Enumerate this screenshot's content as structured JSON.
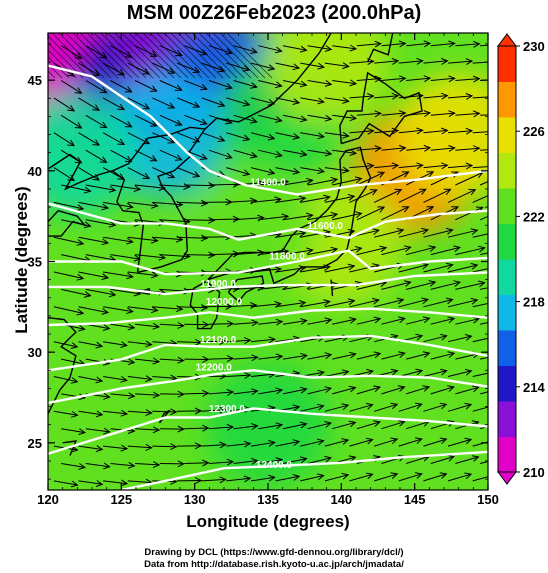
{
  "title": "MSM 00Z26Feb2023 (200.0hPa)",
  "credits": [
    "Drawing by DCL (https://www.gfd-dennou.org/library/dcl/)",
    "Data from http://database.rish.kyoto-u.ac.jp/arch/jmadata/"
  ],
  "chart_data": {
    "type": "heatmap",
    "title": "MSM 00Z26Feb2023 (200.0hPa)",
    "xlabel": "Longitude (degrees)",
    "ylabel": "Latitude  (degrees)",
    "xlim": [
      120,
      150
    ],
    "ylim": [
      22.4,
      47.6
    ],
    "x_ticks": [
      120,
      125,
      130,
      135,
      140,
      145,
      150
    ],
    "y_ticks": [
      25,
      30,
      35,
      40,
      45
    ],
    "colorbar": {
      "ticks": [
        210,
        214,
        218,
        222,
        226,
        230
      ],
      "range": [
        210,
        230
      ],
      "palette": [
        "#e000c8",
        "#8a10d8",
        "#2018c8",
        "#1060e8",
        "#10b8e8",
        "#10d8a0",
        "#20d840",
        "#60e020",
        "#b0e810",
        "#e8e000",
        "#ff9800",
        "#ff3000"
      ]
    },
    "field": [
      {
        "lon": 120,
        "lat": 47.6,
        "value": 210.5
      },
      {
        "lon": 122,
        "lat": 46,
        "value": 211.5
      },
      {
        "lon": 126,
        "lat": 45,
        "value": 213.5
      },
      {
        "lon": 129,
        "lat": 47,
        "value": 212.5
      },
      {
        "lon": 132,
        "lat": 45,
        "value": 216
      },
      {
        "lon": 128,
        "lat": 42,
        "value": 218
      },
      {
        "lon": 122,
        "lat": 41,
        "value": 219
      },
      {
        "lon": 136,
        "lat": 43,
        "value": 221
      },
      {
        "lon": 139,
        "lat": 46,
        "value": 223.5
      },
      {
        "lon": 145,
        "lat": 40,
        "value": 227.5
      },
      {
        "lon": 148,
        "lat": 42,
        "value": 226.5
      },
      {
        "lon": 140,
        "lat": 36,
        "value": 224.5
      },
      {
        "lon": 134,
        "lat": 37,
        "value": 223
      },
      {
        "lon": 126,
        "lat": 32,
        "value": 222.5
      },
      {
        "lon": 146,
        "lat": 30,
        "value": 222
      },
      {
        "lon": 135,
        "lat": 26,
        "value": 221
      },
      {
        "lon": 122,
        "lat": 26,
        "value": 223
      }
    ],
    "contours": [
      {
        "label": "11400.0",
        "lon": 135.0,
        "lat": 39.2,
        "path": [
          [
            120,
            45.8
          ],
          [
            123,
            45.2
          ],
          [
            127,
            43
          ],
          [
            129.5,
            41
          ],
          [
            131,
            40
          ],
          [
            133.5,
            39.2
          ],
          [
            137,
            38.7
          ],
          [
            141,
            39.2
          ],
          [
            145,
            39.5
          ],
          [
            150,
            40
          ]
        ]
      },
      {
        "label": "11600.0",
        "lon": 138.9,
        "lat": 36.8,
        "path": [
          [
            120,
            38.2
          ],
          [
            125,
            37.1
          ],
          [
            128,
            37.1
          ],
          [
            131,
            36.8
          ],
          [
            133,
            36.2
          ],
          [
            137,
            36.8
          ],
          [
            140.5,
            36.3
          ],
          [
            143,
            37.2
          ],
          [
            146.5,
            37.6
          ],
          [
            150,
            37.8
          ]
        ]
      },
      {
        "label": "11800.0",
        "lon": 136.3,
        "lat": 35.1,
        "path": [
          [
            120,
            35.0
          ],
          [
            125,
            35.0
          ],
          [
            128,
            34.3
          ],
          [
            133,
            34.4
          ],
          [
            137,
            35.0
          ],
          [
            140.5,
            35.6
          ],
          [
            142,
            34.6
          ],
          [
            146,
            35.0
          ],
          [
            150,
            35.2
          ]
        ]
      },
      {
        "label": "11900.0",
        "lon": 131.6,
        "lat": 33.6,
        "path": [
          [
            120,
            33.6
          ],
          [
            124,
            33.6
          ],
          [
            128,
            33.2
          ],
          [
            132.5,
            33.6
          ],
          [
            136,
            33.7
          ],
          [
            141,
            33.7
          ],
          [
            145,
            34.2
          ],
          [
            150,
            34.4
          ]
        ]
      },
      {
        "label": "12000.0",
        "lon": 132.0,
        "lat": 32.6,
        "path": [
          [
            120,
            31.5
          ],
          [
            124,
            31.6
          ],
          [
            128,
            31.9
          ],
          [
            131,
            32.2
          ],
          [
            134,
            31.9
          ],
          [
            138,
            32.3
          ],
          [
            142,
            32.4
          ],
          [
            146,
            32.2
          ],
          [
            150,
            31.9
          ]
        ]
      },
      {
        "label": "12100.0",
        "lon": 131.6,
        "lat": 30.5,
        "path": [
          [
            120,
            29.0
          ],
          [
            125,
            29.6
          ],
          [
            128,
            30.4
          ],
          [
            131,
            30.3
          ],
          [
            134,
            30.3
          ],
          [
            138,
            30.8
          ],
          [
            142,
            30.9
          ],
          [
            146,
            30.4
          ],
          [
            150,
            29.8
          ]
        ]
      },
      {
        "label": "12200.0",
        "lon": 131.3,
        "lat": 29.0,
        "path": [
          [
            120,
            27.2
          ],
          [
            125,
            28.0
          ],
          [
            128.5,
            28.4
          ],
          [
            131.5,
            28.8
          ],
          [
            134,
            29.0
          ],
          [
            138,
            28.6
          ],
          [
            142,
            28.7
          ],
          [
            146,
            28.6
          ],
          [
            150,
            28.1
          ]
        ]
      },
      {
        "label": "12300.0",
        "lon": 132.2,
        "lat": 26.7,
        "path": [
          [
            120,
            24.4
          ],
          [
            124,
            25.4
          ],
          [
            128,
            26.4
          ],
          [
            131,
            26.4
          ],
          [
            134,
            26.9
          ],
          [
            138,
            26.6
          ],
          [
            142,
            26.4
          ],
          [
            146,
            26.2
          ],
          [
            150,
            25.9
          ]
        ]
      },
      {
        "label": "12400.0",
        "lon": 135.4,
        "lat": 23.6,
        "path": [
          [
            125,
            22.4
          ],
          [
            128,
            22.9
          ],
          [
            132,
            23.6
          ],
          [
            135,
            23.7
          ],
          [
            140,
            23.9
          ],
          [
            144,
            24.2
          ],
          [
            150,
            24.5
          ]
        ]
      }
    ],
    "wind_arrows": "dense field of westerly wind vectors (black arrows) across the domain",
    "coastlines": "Japan, Korea, eastern China, Sakhalin (black outlines)"
  },
  "colors": {
    "frame": "#000000",
    "contour": "#ffffff",
    "arrow": "#000000",
    "coast": "#000000"
  }
}
